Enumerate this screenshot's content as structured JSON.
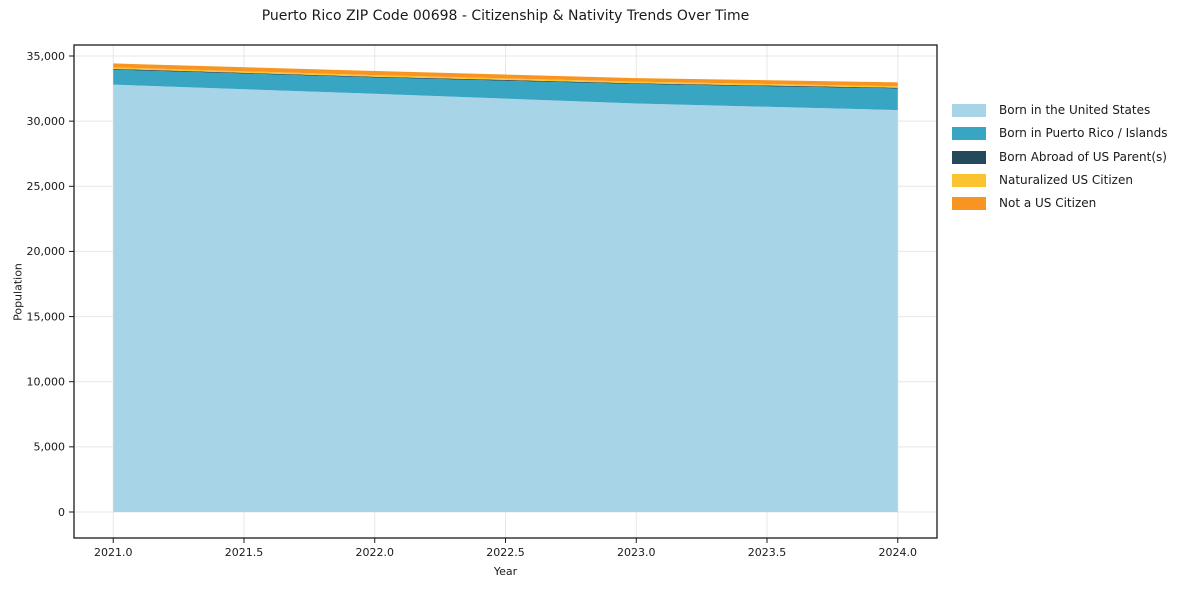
{
  "chart_data": {
    "type": "area",
    "stacked": true,
    "title": "Puerto Rico ZIP Code 00698 - Citizenship & Nativity Trends Over Time",
    "xlabel": "Year",
    "ylabel": "Population",
    "x": [
      2021,
      2022,
      2023,
      2024
    ],
    "series": [
      {
        "name": "Born in the United States",
        "color": "#a8d4e8",
        "values": [
          32800,
          32100,
          31350,
          30850
        ]
      },
      {
        "name": "Born in Puerto Rico / Islands",
        "color": "#38a6c3",
        "values": [
          1150,
          1250,
          1500,
          1650
        ]
      },
      {
        "name": "Born Abroad of US Parent(s)",
        "color": "#24495d",
        "values": [
          60,
          60,
          60,
          60
        ]
      },
      {
        "name": "Naturalized US Citizen",
        "color": "#fcc330",
        "values": [
          120,
          120,
          120,
          120
        ]
      },
      {
        "name": "Not a US Citizen",
        "color": "#f79422",
        "values": [
          300,
          320,
          270,
          300
        ]
      }
    ],
    "xlim": [
      2020.85,
      2024.15
    ],
    "ylim": [
      0,
      35000
    ],
    "xticks": {
      "values": [
        2021,
        2021.5,
        2022,
        2022.5,
        2023,
        2023.5,
        2024
      ],
      "labels": [
        "2021.0",
        "2021.5",
        "2022.0",
        "2022.5",
        "2023.0",
        "2023.5",
        "2024.0"
      ]
    },
    "yticks": {
      "values": [
        0,
        5000,
        10000,
        15000,
        20000,
        25000,
        30000,
        35000
      ],
      "labels": [
        "0",
        "5,000",
        "10,000",
        "15,000",
        "20,000",
        "25,000",
        "30,000",
        "35,000"
      ]
    },
    "grid": true,
    "legend_position": "right"
  },
  "colors": {
    "grid": "#e7e7e7",
    "axis": "#1a1a1a",
    "text": "#1a1a1a",
    "background": "#ffffff"
  }
}
